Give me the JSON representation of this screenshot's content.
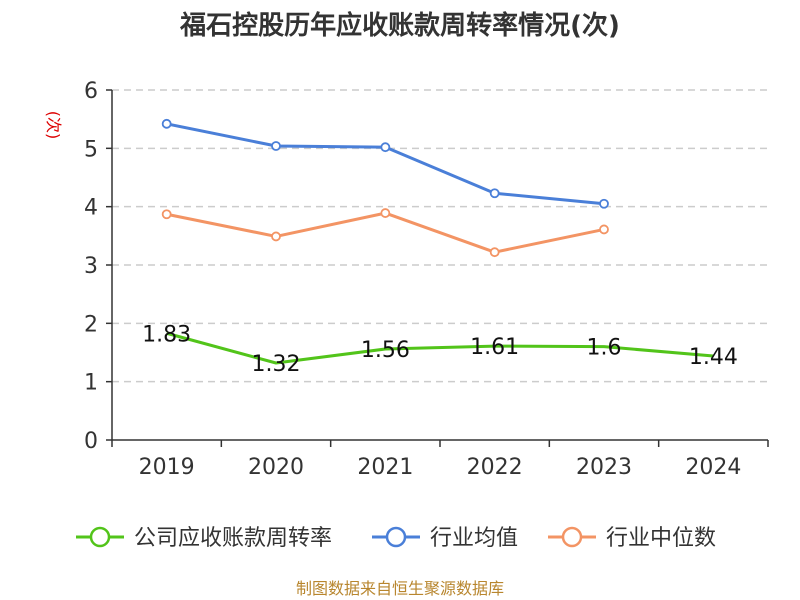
{
  "chart_data": {
    "type": "line",
    "title": "福石控股历年应收账款周转率情况(次)",
    "ylabel": "(次)",
    "categories": [
      "2019",
      "2020",
      "2021",
      "2022",
      "2023",
      "2024"
    ],
    "ylim": [
      0,
      6
    ],
    "yticks": [
      0,
      1,
      2,
      3,
      4,
      5,
      6
    ],
    "grid": true,
    "legend_position": "bottom",
    "series": [
      {
        "name": "公司应收账款周转率",
        "color": "#52c41a",
        "values": [
          1.83,
          1.32,
          1.56,
          1.61,
          1.6,
          1.44
        ],
        "labels": [
          "1.83",
          "1.32",
          "1.56",
          "1.61",
          "1.6",
          "1.44"
        ]
      },
      {
        "name": "行业均值",
        "color": "#4a7fd8",
        "values": [
          5.42,
          5.04,
          5.02,
          4.23,
          4.05,
          null
        ]
      },
      {
        "name": "行业中位数",
        "color": "#f39464",
        "values": [
          3.87,
          3.49,
          3.89,
          3.22,
          3.61,
          null
        ]
      }
    ]
  },
  "source": "制图数据来自恒生聚源数据库",
  "colors": {
    "ylabel": "#dd0000",
    "source": "#b8862e",
    "grid": "#cccccc",
    "axis": "#333333"
  }
}
